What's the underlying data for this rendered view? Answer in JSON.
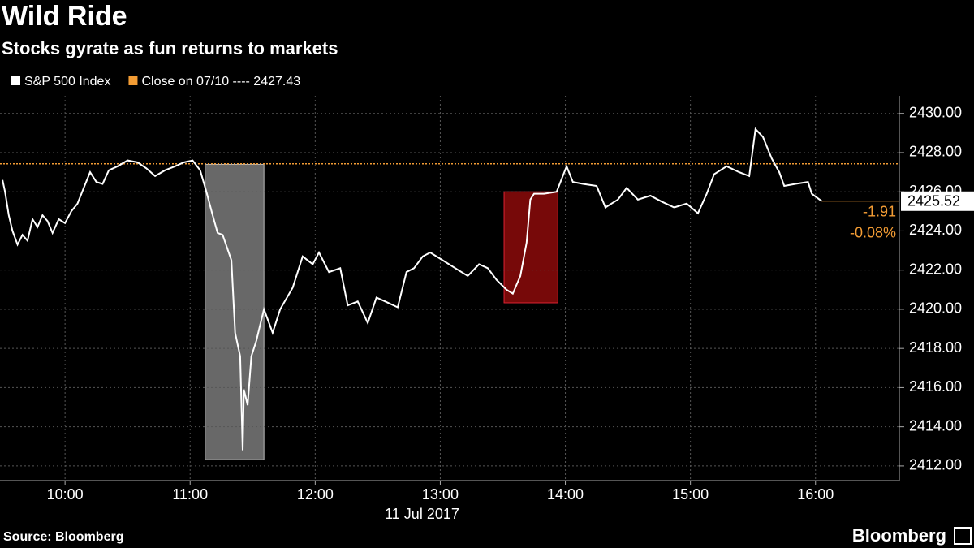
{
  "chart_data": {
    "type": "line",
    "title": "Wild Ride",
    "subtitle": "Stocks gyrate as fun returns to markets",
    "x_label": "11 Jul 2017",
    "source": "Source: Bloomberg",
    "brand": "Bloomberg",
    "xlim": [
      9.48,
      16.67
    ],
    "xticks": [
      {
        "value": 10,
        "label": "10:00"
      },
      {
        "value": 11,
        "label": "11:00"
      },
      {
        "value": 12,
        "label": "12:00"
      },
      {
        "value": 13,
        "label": "13:00"
      },
      {
        "value": 14,
        "label": "14:00"
      },
      {
        "value": 15,
        "label": "15:00"
      },
      {
        "value": 16,
        "label": "16:00"
      }
    ],
    "ylim": [
      2411.25,
      2430.9
    ],
    "yticks": [
      {
        "value": 2412,
        "label": "2412.00"
      },
      {
        "value": 2414,
        "label": "2414.00"
      },
      {
        "value": 2416,
        "label": "2416.00"
      },
      {
        "value": 2418,
        "label": "2418.00"
      },
      {
        "value": 2420,
        "label": "2420.00"
      },
      {
        "value": 2422,
        "label": "2422.00"
      },
      {
        "value": 2424,
        "label": "2424.00"
      },
      {
        "value": 2426,
        "label": "2426.00"
      },
      {
        "value": 2428,
        "label": "2428.00"
      },
      {
        "value": 2430,
        "label": "2430.00"
      }
    ],
    "grid": true,
    "reference_line": {
      "value": 2427.43,
      "label": "Close on 07/10 ---- 2427.43",
      "color": "#f39c34"
    },
    "change_labels": [
      "-1.91",
      "-0.08%"
    ],
    "highlights": [
      {
        "x": [
          11.12,
          11.59
        ],
        "y": [
          2412.32,
          2427.4
        ],
        "color": "#7a7a7a"
      },
      {
        "x": [
          13.51,
          13.94
        ],
        "y": [
          2420.33,
          2426.0
        ],
        "color": "#8c0a0a"
      }
    ],
    "series": [
      {
        "name": "S&P 500 Index",
        "color": "#ffffff",
        "x": [
          9.5,
          9.52,
          9.55,
          9.58,
          9.62,
          9.66,
          9.7,
          9.74,
          9.78,
          9.82,
          9.86,
          9.9,
          9.95,
          10.0,
          10.05,
          10.1,
          10.15,
          10.2,
          10.25,
          10.3,
          10.35,
          10.42,
          10.5,
          10.58,
          10.65,
          10.72,
          10.8,
          10.88,
          10.95,
          11.02,
          11.08,
          11.13,
          11.18,
          11.22,
          11.26,
          11.33,
          11.36,
          11.4,
          11.42,
          11.43,
          11.46,
          11.49,
          11.53,
          11.56,
          11.59,
          11.66,
          11.72,
          11.82,
          11.9,
          11.98,
          12.03,
          12.11,
          12.2,
          12.26,
          12.34,
          12.42,
          12.49,
          12.56,
          12.66,
          12.73,
          12.79,
          12.86,
          12.92,
          13.02,
          13.12,
          13.22,
          13.31,
          13.38,
          13.45,
          13.53,
          13.58,
          13.64,
          13.69,
          13.72,
          13.75,
          13.83,
          13.93,
          14.01,
          14.06,
          14.14,
          14.25,
          14.32,
          14.42,
          14.49,
          14.58,
          14.68,
          14.77,
          14.87,
          14.97,
          15.06,
          15.13,
          15.19,
          15.29,
          15.39,
          15.47,
          15.52,
          15.58,
          15.65,
          15.71,
          15.75,
          15.84,
          15.94,
          15.97,
          16.05
        ],
        "values": [
          2426.6,
          2426.0,
          2424.8,
          2424.0,
          2423.3,
          2423.8,
          2423.5,
          2424.6,
          2424.2,
          2424.8,
          2424.5,
          2423.9,
          2424.6,
          2424.4,
          2425.0,
          2425.4,
          2426.2,
          2427.0,
          2426.5,
          2426.4,
          2427.1,
          2427.3,
          2427.6,
          2427.5,
          2427.2,
          2426.8,
          2427.1,
          2427.3,
          2427.5,
          2427.6,
          2427.1,
          2426.0,
          2424.8,
          2423.9,
          2423.8,
          2422.5,
          2418.8,
          2417.6,
          2412.8,
          2415.9,
          2415.1,
          2417.6,
          2418.4,
          2419.2,
          2420.0,
          2418.8,
          2420.0,
          2421.1,
          2422.7,
          2422.3,
          2422.9,
          2421.9,
          2422.1,
          2420.2,
          2420.4,
          2419.3,
          2420.6,
          2420.4,
          2420.1,
          2421.9,
          2422.1,
          2422.7,
          2422.9,
          2422.5,
          2422.1,
          2421.7,
          2422.3,
          2422.1,
          2421.5,
          2421.0,
          2420.8,
          2421.7,
          2423.4,
          2425.6,
          2425.9,
          2425.9,
          2426.0,
          2427.3,
          2426.5,
          2426.4,
          2426.3,
          2425.2,
          2425.6,
          2426.2,
          2425.6,
          2425.8,
          2425.5,
          2425.2,
          2425.4,
          2424.9,
          2425.9,
          2426.9,
          2427.3,
          2427.0,
          2426.8,
          2429.2,
          2428.8,
          2427.7,
          2427.0,
          2426.3,
          2426.4,
          2426.5,
          2425.9,
          2425.52
        ]
      }
    ]
  }
}
